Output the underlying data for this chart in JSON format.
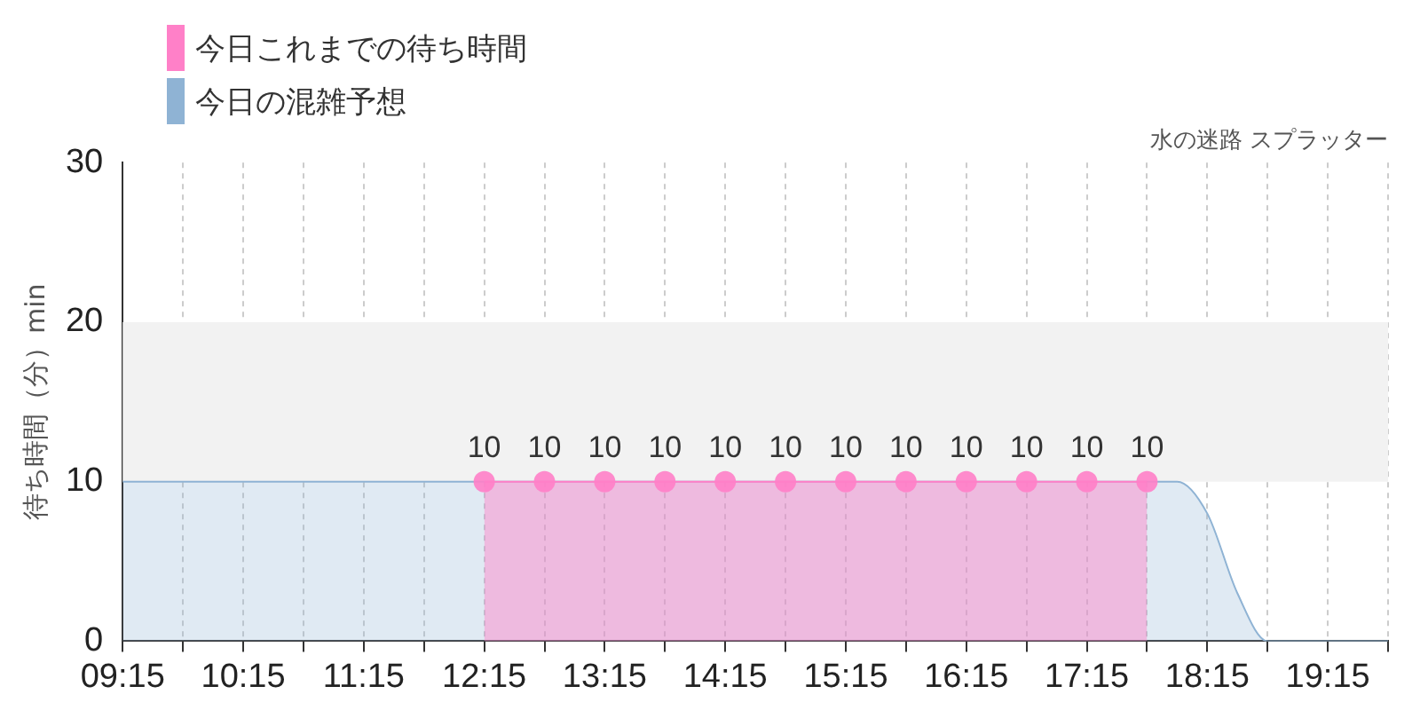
{
  "chart_data": {
    "type": "area",
    "subtitle": "水の迷路 スプラッター",
    "ylabel": "待ち時間（分）min",
    "xlim": [
      9.25,
      19.75
    ],
    "xticks": [
      {
        "value": 9.25,
        "label": "09:15"
      },
      {
        "value": 9.75,
        "label": null
      },
      {
        "value": 10.25,
        "label": "10:15"
      },
      {
        "value": 10.75,
        "label": null
      },
      {
        "value": 11.25,
        "label": "11:15"
      },
      {
        "value": 11.75,
        "label": null
      },
      {
        "value": 12.25,
        "label": "12:15"
      },
      {
        "value": 12.75,
        "label": null
      },
      {
        "value": 13.25,
        "label": "13:15"
      },
      {
        "value": 13.75,
        "label": null
      },
      {
        "value": 14.25,
        "label": "14:15"
      },
      {
        "value": 14.75,
        "label": null
      },
      {
        "value": 15.25,
        "label": "15:15"
      },
      {
        "value": 15.75,
        "label": null
      },
      {
        "value": 16.25,
        "label": "16:15"
      },
      {
        "value": 16.75,
        "label": null
      },
      {
        "value": 17.25,
        "label": "17:15"
      },
      {
        "value": 17.75,
        "label": null
      },
      {
        "value": 18.25,
        "label": "18:15"
      },
      {
        "value": 18.75,
        "label": null
      },
      {
        "value": 19.25,
        "label": "19:15"
      },
      {
        "value": 19.75,
        "label": null
      }
    ],
    "ylim": [
      0,
      30
    ],
    "yticks": [
      0,
      10,
      20,
      30
    ],
    "grid": "x",
    "legend": "top left",
    "bands": [
      {
        "axis": "y",
        "from": 10,
        "to": 20,
        "color": "#f2f2f2"
      }
    ],
    "series": [
      {
        "name": "今日これまでの待ち時間",
        "color": "#ff80c8",
        "marker": "circle",
        "x": [
          12.25,
          12.75,
          13.25,
          13.75,
          14.25,
          14.75,
          15.25,
          15.75,
          16.25,
          16.75,
          17.25,
          17.75
        ],
        "values": [
          10,
          10,
          10,
          10,
          10,
          10,
          10,
          10,
          10,
          10,
          10,
          10
        ],
        "value_labels": [
          "10",
          "10",
          "10",
          "10",
          "10",
          "10",
          "10",
          "10",
          "10",
          "10",
          "10",
          "10"
        ]
      },
      {
        "name": "今日の混雑予想",
        "color": "#8fb3d4",
        "marker": "none",
        "x": [
          9.25,
          9.75,
          10.25,
          10.75,
          11.25,
          11.75,
          12.25,
          12.75,
          13.25,
          13.75,
          14.25,
          14.75,
          15.25,
          15.75,
          16.25,
          16.75,
          17.25,
          17.75,
          18.0,
          18.25,
          18.5,
          18.75,
          19.25,
          19.75
        ],
        "values": [
          10,
          10,
          10,
          10,
          10,
          10,
          10,
          10,
          10,
          10,
          10,
          10,
          10,
          10,
          10,
          10,
          10,
          10,
          10,
          8,
          3,
          0,
          0,
          0
        ]
      }
    ]
  }
}
